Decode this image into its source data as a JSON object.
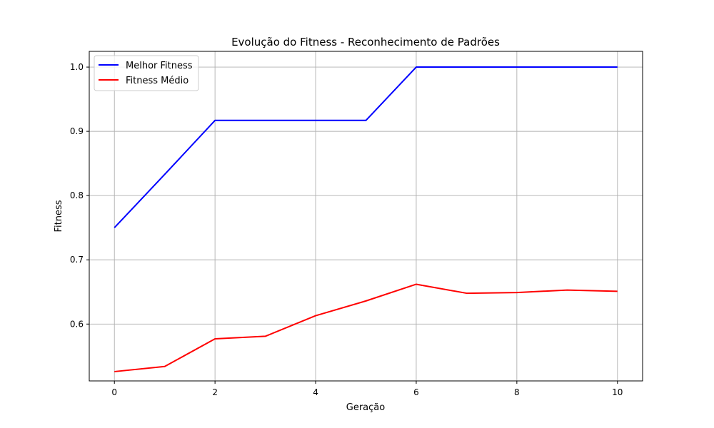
{
  "chart_data": {
    "type": "line",
    "title": "Evolução do Fitness - Reconhecimento de Padrões",
    "xlabel": "Geração",
    "ylabel": "Fitness",
    "x": [
      0,
      1,
      2,
      3,
      4,
      5,
      6,
      7,
      8,
      9,
      10
    ],
    "xlim": [
      -0.5,
      10.5
    ],
    "ylim": [
      0.5115,
      1.0245
    ],
    "xticks": [
      0,
      2,
      4,
      6,
      8,
      10
    ],
    "yticks": [
      0.6,
      0.7,
      0.8,
      0.9,
      1.0
    ],
    "xtick_labels": [
      "0",
      "2",
      "4",
      "6",
      "8",
      "10"
    ],
    "ytick_labels": [
      "0.6",
      "0.7",
      "0.8",
      "0.9",
      "1.0"
    ],
    "grid": true,
    "legend_position": "top-left",
    "series": [
      {
        "name": "Melhor Fitness",
        "color": "#0000ff",
        "values": [
          0.75,
          0.833,
          0.917,
          0.917,
          0.917,
          0.917,
          1.0,
          1.0,
          1.0,
          1.0,
          1.0
        ]
      },
      {
        "name": "Fitness Médio",
        "color": "#ff0000",
        "values": [
          0.526,
          0.534,
          0.577,
          0.581,
          0.613,
          0.636,
          0.662,
          0.648,
          0.649,
          0.653,
          0.651
        ]
      }
    ]
  }
}
